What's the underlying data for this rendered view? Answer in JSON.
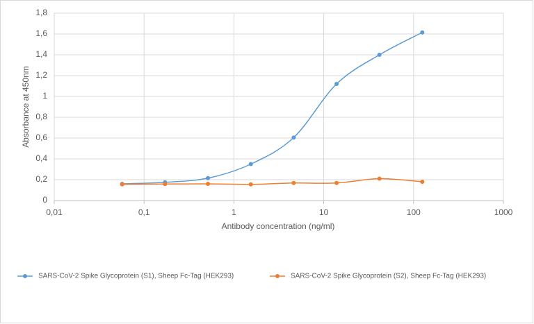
{
  "chart_data": {
    "type": "line",
    "x_label": "Antibody concentration (ng/ml)",
    "y_label": "Absorbance at 450nm",
    "xscale": "log",
    "x": [
      0.057,
      0.171,
      0.514,
      1.543,
      4.63,
      13.89,
      41.67,
      125
    ],
    "series": [
      {
        "name": "SARS-CoV-2 Spike Glycoprotein (S1), Sheep Fc-Tag (HEK293)",
        "color": "#5b9bd5",
        "values": [
          0.16,
          0.175,
          0.215,
          0.35,
          0.605,
          1.12,
          1.4,
          1.615
        ]
      },
      {
        "name": "SARS-CoV-2 Spike Glycoprotein (S2), Sheep Fc-Tag (HEK293)",
        "color": "#ed7d31",
        "values": [
          0.155,
          0.158,
          0.16,
          0.155,
          0.168,
          0.168,
          0.21,
          0.18
        ]
      }
    ],
    "xlim": [
      0.01,
      1000
    ],
    "xticks": [
      {
        "value": 0.01,
        "label": "0,01"
      },
      {
        "value": 0.1,
        "label": "0,1"
      },
      1,
      10,
      100,
      1000
    ],
    "ylim": [
      0,
      1.8
    ],
    "yticks": [
      0,
      {
        "value": 0.2,
        "label": "0,2"
      },
      {
        "value": 0.4,
        "label": "0,4"
      },
      {
        "value": 0.6,
        "label": "0,6"
      },
      {
        "value": 0.8,
        "label": "0,8"
      },
      1,
      {
        "value": 1.2,
        "label": "1,2"
      },
      {
        "value": 1.4,
        "label": "1,4"
      },
      {
        "value": 1.6,
        "label": "1,6"
      },
      {
        "value": 1.8,
        "label": "1,8"
      }
    ],
    "grid": true,
    "smooth": true,
    "legend": "bottom"
  }
}
